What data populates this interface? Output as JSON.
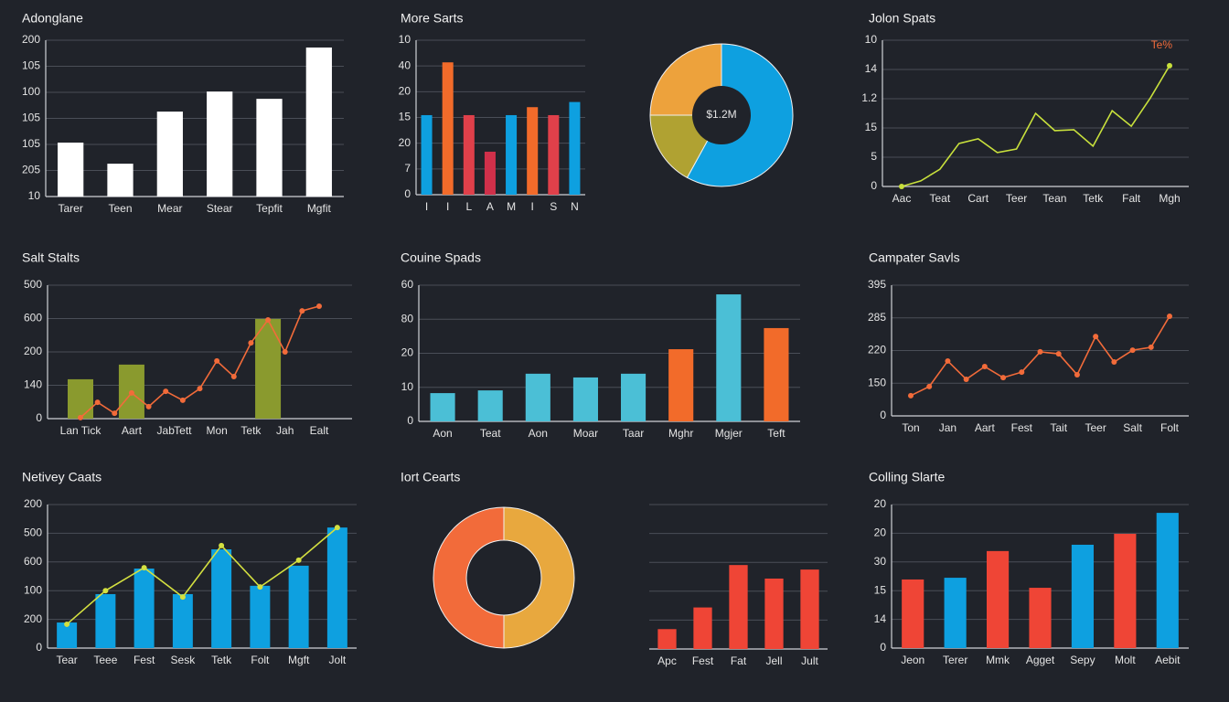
{
  "chart_data": [
    {
      "type": "bar",
      "title": "Adonglane",
      "categories": [
        "Tarer",
        "Teen",
        "Mear",
        "Stear",
        "Tepfit",
        "Mgfit"
      ],
      "values": [
        2.07,
        1.26,
        3.26,
        4.03,
        3.75,
        5.72
      ],
      "color": "#ffffff",
      "ylim": [
        0,
        6
      ],
      "yticks": [
        {
          "value": 0,
          "label": "10"
        },
        {
          "value": 1,
          "label": "205"
        },
        {
          "value": 2,
          "label": "105"
        },
        {
          "value": 3,
          "label": "105"
        },
        {
          "value": 4,
          "label": "100"
        },
        {
          "value": 5,
          "label": "105"
        },
        {
          "value": 6,
          "label": "200"
        }
      ],
      "grid": true
    },
    {
      "type": "bar",
      "title": "More Sarts",
      "categories": [
        "I",
        "I",
        "L",
        "A",
        "M",
        "I",
        "S",
        "N"
      ],
      "values": [
        3.09,
        5.14,
        3.09,
        1.67,
        3.09,
        3.4,
        3.09,
        3.6
      ],
      "colors": [
        "#0ea0e0",
        "#f26b2a",
        "#e0404a",
        "#d0304a",
        "#0ea0e0",
        "#f26b2a",
        "#e0404a",
        "#0ea0e0"
      ],
      "ylim": [
        0,
        6
      ],
      "yticks": [
        {
          "value": 0,
          "label": "0"
        },
        {
          "value": 1,
          "label": "7"
        },
        {
          "value": 2,
          "label": "20"
        },
        {
          "value": 3,
          "label": "15"
        },
        {
          "value": 4,
          "label": "20"
        },
        {
          "value": 5,
          "label": "40"
        },
        {
          "value": 6,
          "label": "10"
        }
      ],
      "grid": true
    },
    {
      "type": "pie",
      "values": [
        58,
        17,
        25
      ],
      "colors": [
        "#0ea0e0",
        "#b0a232",
        "#eda23c"
      ],
      "center_label": "$1.2M"
    },
    {
      "type": "line",
      "title": "Jolon Spats",
      "categories": [
        "Aac",
        null,
        "Teat",
        null,
        "Cart",
        null,
        "Teer",
        null,
        "Tean",
        null,
        "Tetk",
        null,
        "Falt",
        null,
        "Mgh"
      ],
      "series": [
        {
          "color": "#c8e03c",
          "values": [
            0,
            0.19,
            0.59,
            1.47,
            1.63,
            1.16,
            1.28,
            2.5,
            1.91,
            1.94,
            1.38,
            2.59,
            2.06,
            3.03,
            4.13
          ]
        }
      ],
      "markers": "ends",
      "ylim": [
        0,
        5
      ],
      "yticks": [
        {
          "value": 0,
          "label": "0"
        },
        {
          "value": 1,
          "label": "5"
        },
        {
          "value": 2,
          "label": "15"
        },
        {
          "value": 3,
          "label": "1.2"
        },
        {
          "value": 4,
          "label": "14"
        },
        {
          "value": 5,
          "label": "10"
        }
      ],
      "grid": true,
      "annotation": "Te%"
    },
    {
      "type": "combo",
      "title": "Salt Stalts",
      "categories": [
        "Lan Tick",
        null,
        null,
        "Aart",
        null,
        "Jab",
        "Tett",
        null,
        "Mon",
        null,
        "Tetk",
        null,
        "Jah",
        null,
        "Ealt"
      ],
      "series": [
        {
          "type": "bar",
          "color": "#8a9a2e",
          "values": [
            1.18,
            null,
            null,
            1.62,
            null,
            null,
            null,
            null,
            null,
            null,
            null,
            2.99,
            null,
            null,
            null
          ]
        },
        {
          "type": "line",
          "color": "#f26b3a",
          "values": [
            0.03,
            0.49,
            0.16,
            0.77,
            0.36,
            0.82,
            0.55,
            0.9,
            1.73,
            1.26,
            2.27,
            2.96,
            2.0,
            3.23,
            3.37
          ]
        }
      ],
      "markers": "all",
      "ylim": [
        0,
        4
      ],
      "yticks": [
        {
          "value": 0,
          "label": "0"
        },
        {
          "value": 1,
          "label": "140"
        },
        {
          "value": 2,
          "label": "200"
        },
        {
          "value": 3,
          "label": "600"
        },
        {
          "value": 4,
          "label": "500"
        }
      ],
      "grid": true
    },
    {
      "type": "bar",
      "title": "Couine Spads",
      "categories": [
        "Aon",
        "Teat",
        "Aon",
        "Moar",
        "Taar",
        "Mghr",
        "Mgjer",
        "Teft"
      ],
      "values": [
        0.83,
        0.91,
        1.4,
        1.29,
        1.4,
        2.12,
        3.73,
        2.74
      ],
      "colors": [
        "#4bbfd6",
        "#4bbfd6",
        "#4bbfd6",
        "#4bbfd6",
        "#4bbfd6",
        "#f26b2a",
        "#4bbfd6",
        "#f26b2a"
      ],
      "ylim": [
        0,
        4
      ],
      "yticks": [
        {
          "value": 0,
          "label": "0"
        },
        {
          "value": 1,
          "label": "10"
        },
        {
          "value": 2,
          "label": "20"
        },
        {
          "value": 3,
          "label": "80"
        },
        {
          "value": 4,
          "label": "60"
        }
      ],
      "grid": true
    },
    {
      "type": "line",
      "title": "Campater Savls",
      "categories": [
        "Ton",
        null,
        "Jan",
        null,
        "Aart",
        null,
        "Fest",
        null,
        "Tait",
        null,
        "Teer",
        null,
        "Salt",
        null,
        "Folt"
      ],
      "series": [
        {
          "color": "#f26b3a",
          "values": [
            0.62,
            0.9,
            1.68,
            1.12,
            1.51,
            1.17,
            1.34,
            1.96,
            1.9,
            1.26,
            2.43,
            1.65,
            2.01,
            2.1,
            3.05
          ]
        }
      ],
      "markers": "all",
      "ylim": [
        0,
        4
      ],
      "yticks": [
        {
          "value": 0,
          "label": "0"
        },
        {
          "value": 1,
          "label": "150"
        },
        {
          "value": 2,
          "label": "220"
        },
        {
          "value": 3,
          "label": "285"
        },
        {
          "value": 4,
          "label": "395"
        }
      ],
      "grid": true
    },
    {
      "type": "combo",
      "title": "Netivey Caats",
      "categories": [
        "Tear",
        "Teee",
        "Fest",
        "Sesk",
        "Tetk",
        "Folt",
        "Mgft",
        "Jolt"
      ],
      "series": [
        {
          "type": "bar",
          "color": "#0ea0e0",
          "values": [
            0.89,
            1.88,
            2.77,
            1.88,
            3.44,
            2.17,
            2.87,
            4.2
          ]
        },
        {
          "type": "line",
          "color": "#d4e040",
          "values": [
            0.83,
            2.0,
            2.8,
            1.78,
            3.57,
            2.13,
            3.06,
            4.2
          ]
        }
      ],
      "markers": "all",
      "ylim": [
        0,
        5
      ],
      "yticks": [
        {
          "value": 0,
          "label": "0"
        },
        {
          "value": 1,
          "label": "200"
        },
        {
          "value": 2,
          "label": "100"
        },
        {
          "value": 3,
          "label": "600"
        },
        {
          "value": 4,
          "label": "500"
        },
        {
          "value": 5,
          "label": "200"
        }
      ],
      "grid": true
    },
    {
      "type": "donut",
      "title": "Iort Cearts",
      "values": [
        50,
        50
      ],
      "colors": [
        "#e8a83e",
        "#f26b3a"
      ]
    },
    {
      "type": "bar",
      "categories": [
        "Apc",
        "Fest",
        "Fat",
        "Jell",
        "Jult"
      ],
      "values": [
        22,
        46,
        93,
        78,
        88
      ],
      "color": "#ef4536",
      "ylim": [
        0,
        160
      ],
      "grid": true
    },
    {
      "type": "bar",
      "title": "Colling Slarte",
      "categories": [
        "Jeon",
        "Terer",
        "Mmk",
        "Agget",
        "Sepy",
        "Molt",
        "Aebit"
      ],
      "values": [
        2.39,
        2.45,
        3.38,
        2.1,
        3.6,
        3.98,
        4.71
      ],
      "colors": [
        "#ef4536",
        "#0ea0e0",
        "#ef4536",
        "#ef4536",
        "#0ea0e0",
        "#ef4536",
        "#0ea0e0"
      ],
      "ylim": [
        0,
        5
      ],
      "yticks": [
        {
          "value": 0,
          "label": "0"
        },
        {
          "value": 1,
          "label": "14"
        },
        {
          "value": 2,
          "label": "15"
        },
        {
          "value": 3,
          "label": "30"
        },
        {
          "value": 4,
          "label": "20"
        },
        {
          "value": 5,
          "label": "20"
        }
      ],
      "grid": true
    }
  ]
}
